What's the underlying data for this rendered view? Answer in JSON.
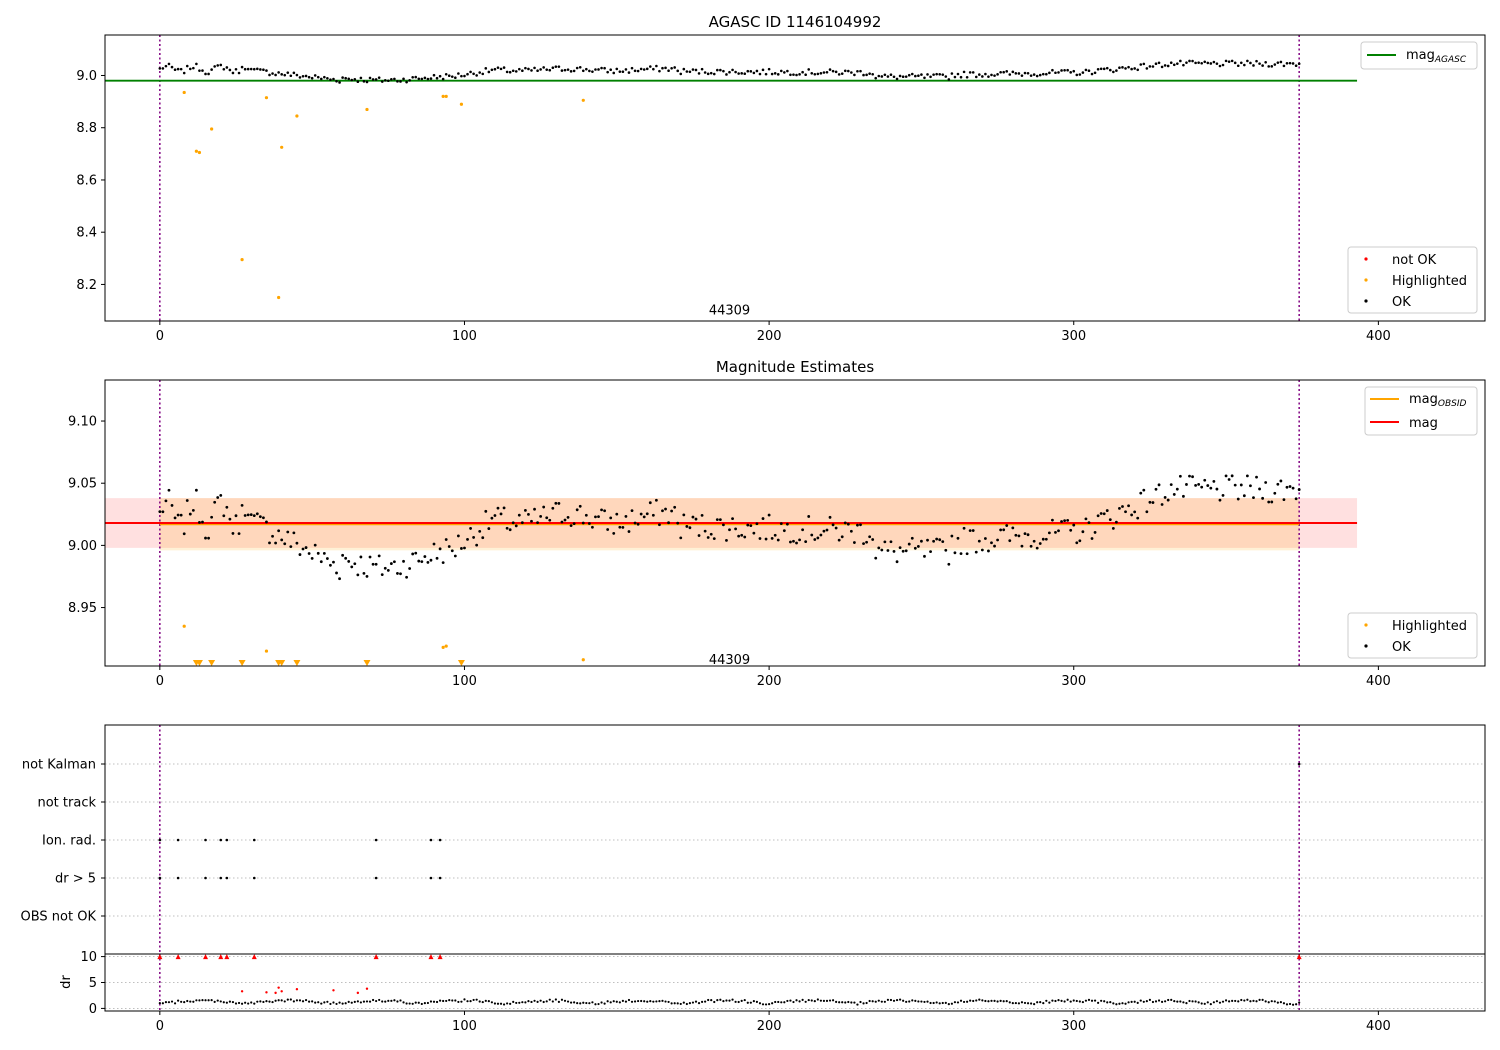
{
  "chart_data": [
    {
      "type": "scatter",
      "title": "AGASC ID 1146104992",
      "xlim": [
        -18,
        435
      ],
      "ylim": [
        8.06,
        9.155
      ],
      "xticks": [
        0,
        100,
        200,
        300,
        400
      ],
      "yticks": [
        8.2,
        8.4,
        8.6,
        8.8,
        9.0
      ],
      "ytick_labels": [
        "8.2",
        "8.4",
        "8.6",
        "8.8",
        "9.0"
      ],
      "vlines": [
        0,
        374
      ],
      "annotation": {
        "text": "44309",
        "x": 187,
        "y": 8.1
      },
      "series": [
        {
          "name": "mag_AGASC",
          "kind": "hline",
          "y": 8.98,
          "x": [
            -18,
            393
          ],
          "color": "#008000"
        },
        {
          "name": "not OK",
          "kind": "points",
          "color": "#ff0000",
          "points": []
        },
        {
          "name": "Highlighted",
          "kind": "points",
          "color": "#ffa500",
          "points": [
            [
              8,
              8.935
            ],
            [
              12,
              8.71
            ],
            [
              13,
              8.705
            ],
            [
              17,
              8.795
            ],
            [
              27,
              8.295
            ],
            [
              35,
              8.915
            ],
            [
              39,
              8.15
            ],
            [
              40,
              8.725
            ],
            [
              45,
              8.845
            ],
            [
              68,
              8.87
            ],
            [
              93,
              8.92
            ],
            [
              94,
              8.92
            ],
            [
              99,
              8.89
            ],
            [
              139,
              8.905
            ]
          ]
        },
        {
          "name": "OK",
          "kind": "ok_trace",
          "color": "#000000"
        }
      ],
      "legends": [
        {
          "position": "upper right",
          "entries": [
            {
              "label": "mag",
              "subscript": "AGASC",
              "color": "#008000",
              "marker": "line"
            }
          ]
        },
        {
          "position": "lower right",
          "entries": [
            {
              "label": "not OK",
              "color": "#ff0000",
              "marker": "dot"
            },
            {
              "label": "Highlighted",
              "color": "#ffa500",
              "marker": "dot"
            },
            {
              "label": "OK",
              "color": "#000000",
              "marker": "dot"
            }
          ]
        }
      ]
    },
    {
      "type": "scatter",
      "title": "Magnitude Estimates",
      "xlim": [
        -18,
        435
      ],
      "ylim": [
        8.903,
        9.133
      ],
      "xticks": [
        0,
        100,
        200,
        300,
        400
      ],
      "yticks": [
        8.95,
        9.0,
        9.05,
        9.1
      ],
      "ytick_labels": [
        "8.95",
        "9.00",
        "9.05",
        "9.10"
      ],
      "vlines": [
        0,
        374
      ],
      "annotation": {
        "text": "44309",
        "x": 187,
        "y": 8.908
      },
      "bands": [
        {
          "color": "#ff0000",
          "opacity": 0.12,
          "y": [
            8.998,
            9.038
          ],
          "x": [
            -18,
            393
          ]
        },
        {
          "color": "#ffa500",
          "opacity": 0.16,
          "y": [
            8.996,
            9.038
          ],
          "x": [
            0,
            374
          ]
        }
      ],
      "series": [
        {
          "name": "mag_OBSID",
          "kind": "hline",
          "y": 9.017,
          "x": [
            0,
            374
          ],
          "color": "#ffa500"
        },
        {
          "name": "mag",
          "kind": "hline",
          "y": 9.018,
          "x": [
            -18,
            393
          ],
          "color": "#ff0000"
        },
        {
          "name": "Highlighted",
          "kind": "points",
          "color": "#ffa500",
          "points": [
            [
              8,
              8.935
            ],
            [
              35,
              8.915
            ],
            [
              93,
              8.918
            ],
            [
              94,
              8.919
            ],
            [
              139,
              8.908
            ]
          ]
        },
        {
          "name": "Highlighted (below axis)",
          "kind": "tri_down",
          "color": "#ffa500",
          "x": [
            12,
            13,
            17,
            27,
            39,
            40,
            45,
            68,
            99
          ]
        },
        {
          "name": "OK",
          "kind": "ok_trace",
          "color": "#000000"
        }
      ],
      "legends": [
        {
          "position": "upper right",
          "entries": [
            {
              "label": "mag",
              "subscript": "OBSID",
              "color": "#ffa500",
              "marker": "line"
            },
            {
              "label": "mag",
              "subscript": "",
              "color": "#ff0000",
              "marker": "line"
            }
          ]
        },
        {
          "position": "lower right",
          "entries": [
            {
              "label": "Highlighted",
              "color": "#ffa500",
              "marker": "dot"
            },
            {
              "label": "OK",
              "color": "#000000",
              "marker": "dot"
            }
          ]
        }
      ]
    },
    {
      "type": "scatter",
      "title": "",
      "xlim": [
        -18,
        435
      ],
      "categories": [
        "not Kalman",
        "not track",
        "Ion. rad.",
        "dr > 5",
        "OBS not OK"
      ],
      "vlines": [
        0,
        374
      ],
      "flags": {
        "not Kalman": [
          374
        ],
        "not track": [],
        "Ion. rad.": [
          0,
          6,
          15,
          20,
          22,
          31,
          71,
          89,
          92
        ],
        "dr > 5": [
          0,
          6,
          15,
          20,
          22,
          31,
          71,
          89,
          92
        ],
        "OBS not OK": []
      }
    },
    {
      "type": "scatter",
      "title": "",
      "ylabel": "dr",
      "xlim": [
        -18,
        435
      ],
      "ylim": [
        -0.5,
        10.5
      ],
      "xticks": [
        0,
        100,
        200,
        300,
        400
      ],
      "yticks": [
        0,
        5,
        10
      ],
      "vlines": [
        0,
        374
      ],
      "series": [
        {
          "name": "dr > 5 (clipped)",
          "kind": "tri_up",
          "color": "#ff0000",
          "y": 10,
          "x": [
            0,
            6,
            15,
            20,
            22,
            31,
            71,
            89,
            92,
            374
          ]
        },
        {
          "name": "dr outliers",
          "kind": "points",
          "color": "#ff0000",
          "points": [
            [
              27,
              3.3
            ],
            [
              35,
              3.1
            ],
            [
              38,
              3.0
            ],
            [
              39,
              4.0
            ],
            [
              40,
              3.3
            ],
            [
              45,
              3.7
            ],
            [
              57,
              3.5
            ],
            [
              65,
              3.0
            ],
            [
              68,
              3.8
            ]
          ]
        },
        {
          "name": "dr",
          "kind": "dr_trace",
          "color": "#000000"
        }
      ]
    }
  ]
}
